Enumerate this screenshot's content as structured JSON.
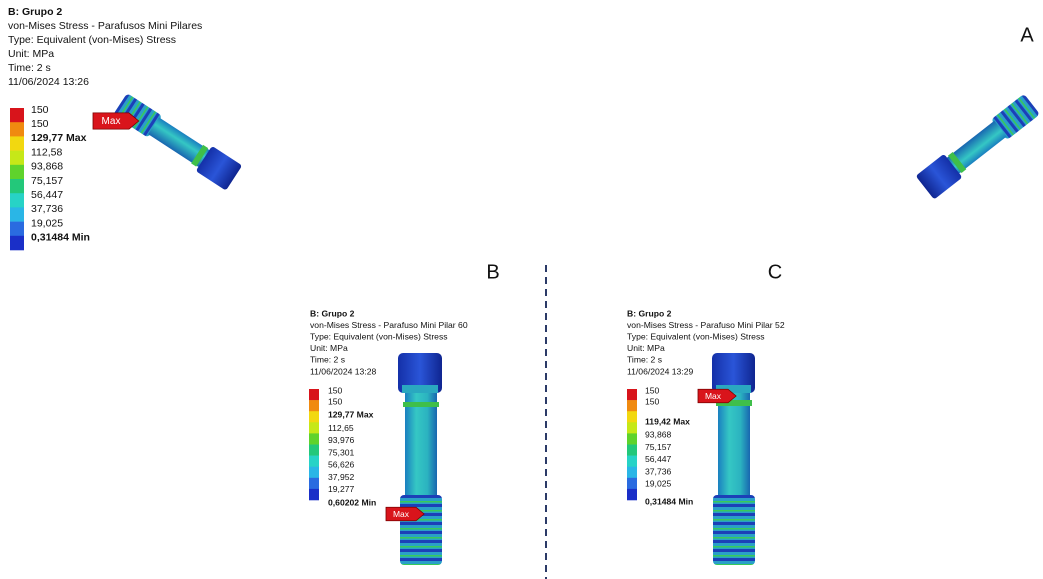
{
  "panel_labels": [
    "A",
    "B",
    "C"
  ],
  "panels": [
    {
      "header": [
        "B: Grupo 2",
        "von-Mises Stress - Parafusos Mini Pilares",
        "Type: Equivalent (von-Mises) Stress",
        "Unit: MPa",
        "Time: 2 s",
        "11/06/2024 13:26"
      ],
      "legend": [
        "150",
        "150",
        "129,77 Max",
        "112,58",
        "93,868",
        "75,157",
        "56,447",
        "37,736",
        "19,025",
        "0,31484 Min"
      ],
      "max_flag": "Max"
    },
    {
      "header": [
        "B: Grupo 2",
        "von-Mises Stress - Parafuso Mini Pilar 60",
        "Type: Equivalent (von-Mises) Stress",
        "Unit: MPa",
        "Time: 2 s",
        "11/06/2024 13:28"
      ],
      "legend": [
        "150",
        "150",
        "129,77 Max",
        "112,65",
        "93,976",
        "75,301",
        "56,626",
        "37,952",
        "19,277",
        "0,60202 Min"
      ],
      "max_flag": "Max"
    },
    {
      "header": [
        "B: Grupo 2",
        "von-Mises Stress - Parafuso Mini Pilar 52",
        "Type: Equivalent (von-Mises) Stress",
        "Unit: MPa",
        "Time: 2 s",
        "11/06/2024 13:29"
      ],
      "legend": [
        "150",
        "150",
        "119,42 Max",
        "93,868",
        "75,157",
        "56,447",
        "37,736",
        "19,025",
        "0,31484 Min"
      ],
      "max_flag": "Max"
    }
  ]
}
